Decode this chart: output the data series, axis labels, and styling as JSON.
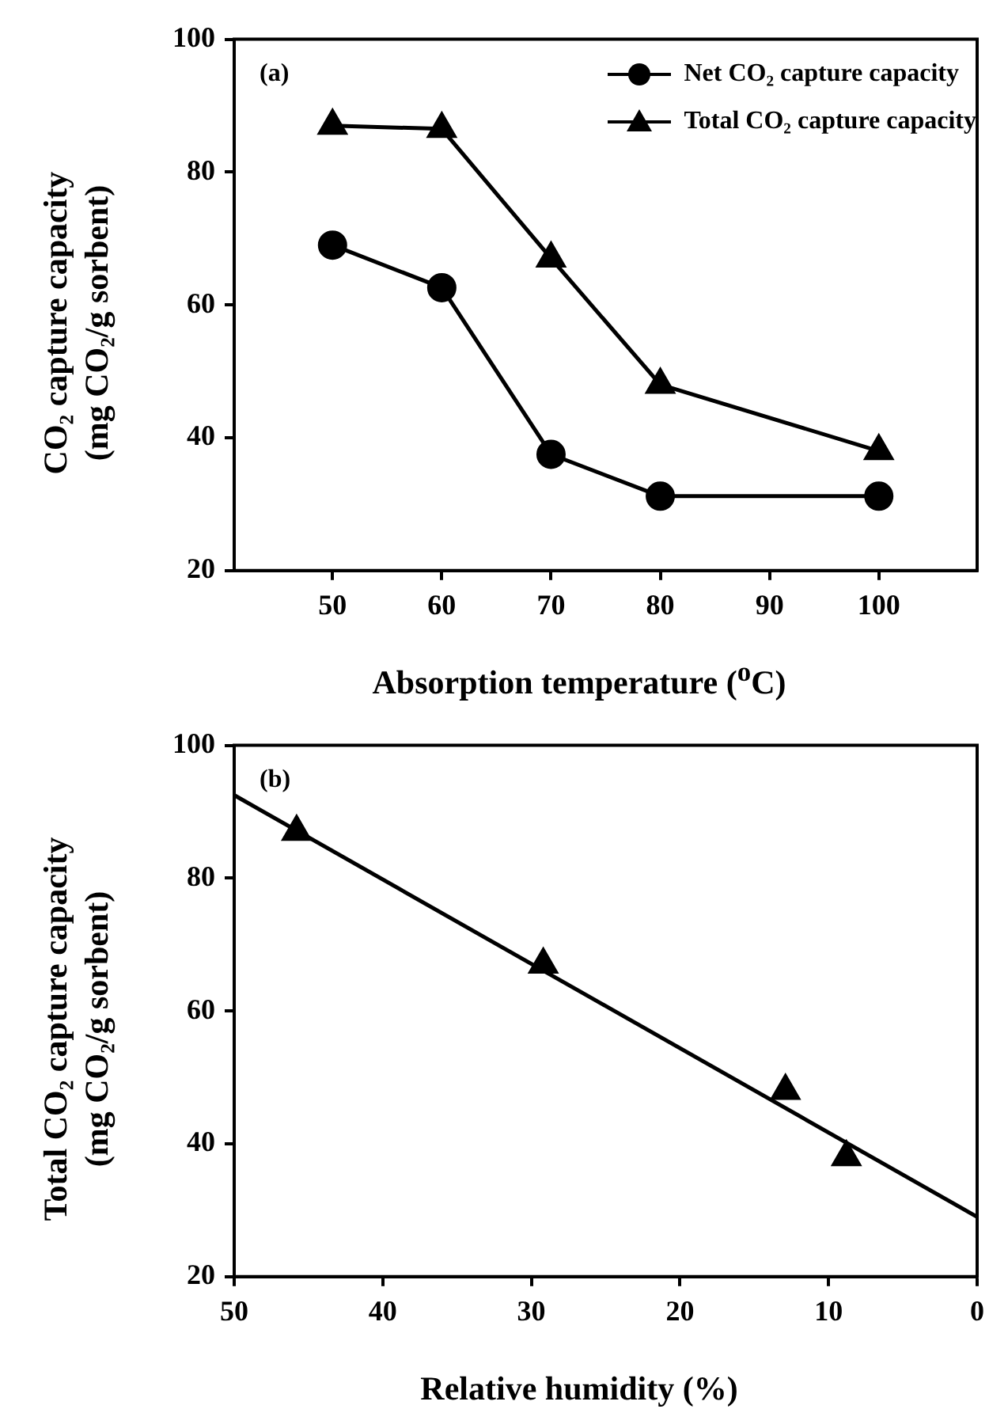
{
  "chart_data": [
    {
      "type": "line",
      "annotations": [
        "(a)"
      ],
      "xlabel": "Absorption temperature ($^{o}$C)",
      "ylabel": "CO₂ capture capacity\n(mg CO₂/g sorbent)",
      "x": [
        50,
        60,
        70,
        80,
        100
      ],
      "series": [
        {
          "name": "Net CO₂ capture capacity",
          "color": "#000000",
          "marker": "circle",
          "values": [
            69,
            62.6,
            37.5,
            31.2,
            31.2
          ]
        },
        {
          "name": "Total CO₂ capture capacity",
          "color": "#000000",
          "marker": "triangle",
          "values": [
            87,
            86.5,
            67,
            48,
            38
          ]
        }
      ],
      "xlim": [
        41,
        109
      ],
      "xticks": [
        50,
        60,
        70,
        80,
        90,
        100
      ],
      "ylim": [
        20,
        100
      ],
      "yticks": [
        20,
        40,
        60,
        80,
        100
      ],
      "grid": false,
      "legend": "top right",
      "line_style": "solid"
    },
    {
      "type": "scatter",
      "annotations": [
        "(b)"
      ],
      "xlabel": "Relative humidity (%)",
      "ylabel": "Total CO₂ capture capacity\n(mg CO₂/g sorbent)",
      "series": [
        {
          "color": "#000000",
          "marker": "triangle",
          "x": [
            45.8,
            29.2,
            12.9,
            8.8
          ],
          "values": [
            87,
            67,
            48,
            38
          ]
        },
        {
          "type": "line",
          "color": "#000000",
          "marker": "none",
          "x": [
            50,
            0
          ],
          "values": [
            92.5,
            29
          ]
        }
      ],
      "xlim": [
        50,
        0
      ],
      "xticks": [
        50,
        40,
        30,
        20,
        10,
        0
      ],
      "ylim": [
        20,
        100
      ],
      "yticks": [
        20,
        40,
        60,
        80,
        100
      ],
      "grid": false,
      "line_style": "solid"
    }
  ]
}
